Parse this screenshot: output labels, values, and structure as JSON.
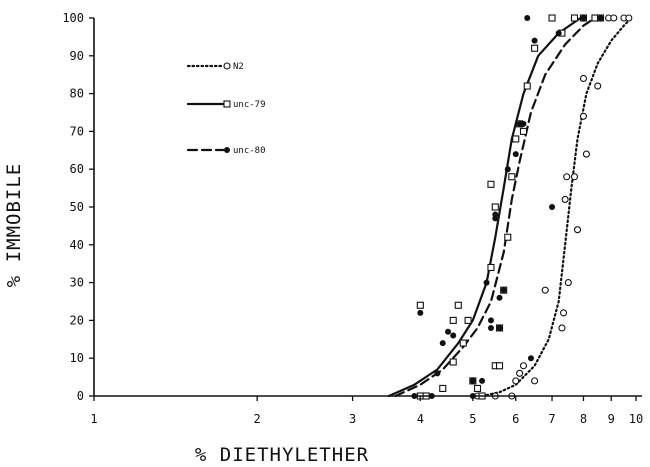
{
  "chart_data": {
    "type": "scatter",
    "xlabel": "% DIETHYLETHER",
    "ylabel": "% IMMOBILE",
    "x_scale": "log",
    "xlim": [
      1,
      10
    ],
    "ylim": [
      0,
      100
    ],
    "x_ticks": [
      "1",
      "2",
      "3",
      "4",
      "5",
      "6",
      "7",
      "8",
      "9",
      "10"
    ],
    "y_ticks": [
      "0",
      "10",
      "20",
      "30",
      "40",
      "50",
      "60",
      "70",
      "80",
      "90",
      "100"
    ],
    "grid": false,
    "legend": "upper-left",
    "series": [
      {
        "name": "N2",
        "marker": "open-circle",
        "line_style": "dotted",
        "points": [
          [
            5.1,
            0
          ],
          [
            5.5,
            0
          ],
          [
            5.9,
            0
          ],
          [
            6.0,
            4
          ],
          [
            6.1,
            6
          ],
          [
            6.2,
            8
          ],
          [
            6.5,
            4
          ],
          [
            6.8,
            28
          ],
          [
            7.3,
            18
          ],
          [
            7.35,
            22
          ],
          [
            7.4,
            52
          ],
          [
            7.45,
            58
          ],
          [
            7.5,
            30
          ],
          [
            7.7,
            58
          ],
          [
            7.8,
            44
          ],
          [
            8.0,
            74
          ],
          [
            8.0,
            84
          ],
          [
            8.1,
            64
          ],
          [
            8.5,
            82
          ],
          [
            8.6,
            100
          ],
          [
            8.9,
            100
          ],
          [
            9.1,
            100
          ],
          [
            9.5,
            100
          ],
          [
            9.7,
            100
          ]
        ],
        "curve": [
          [
            5.2,
            0
          ],
          [
            5.6,
            1
          ],
          [
            6.0,
            3
          ],
          [
            6.5,
            8
          ],
          [
            6.9,
            15
          ],
          [
            7.2,
            25
          ],
          [
            7.4,
            40
          ],
          [
            7.6,
            55
          ],
          [
            7.8,
            68
          ],
          [
            8.1,
            80
          ],
          [
            8.5,
            88
          ],
          [
            9.0,
            94
          ],
          [
            9.5,
            98
          ],
          [
            9.8,
            100
          ]
        ]
      },
      {
        "name": "unc-79",
        "marker": "open-square",
        "line_style": "solid",
        "points": [
          [
            4.0,
            24
          ],
          [
            4.0,
            0
          ],
          [
            4.1,
            0
          ],
          [
            4.4,
            2
          ],
          [
            4.6,
            9
          ],
          [
            4.6,
            20
          ],
          [
            4.7,
            24
          ],
          [
            4.8,
            14
          ],
          [
            4.9,
            20
          ],
          [
            5.0,
            4
          ],
          [
            5.1,
            2
          ],
          [
            5.2,
            0
          ],
          [
            5.4,
            56
          ],
          [
            5.4,
            34
          ],
          [
            5.5,
            8
          ],
          [
            5.5,
            50
          ],
          [
            5.6,
            8
          ],
          [
            5.6,
            18
          ],
          [
            5.7,
            28
          ],
          [
            5.8,
            42
          ],
          [
            5.9,
            58
          ],
          [
            6.0,
            68
          ],
          [
            6.1,
            72
          ],
          [
            6.2,
            70
          ],
          [
            6.3,
            82
          ],
          [
            6.5,
            92
          ],
          [
            7.0,
            100
          ],
          [
            7.3,
            96
          ],
          [
            7.7,
            100
          ],
          [
            8.0,
            100
          ],
          [
            8.4,
            100
          ],
          [
            8.6,
            100
          ]
        ],
        "curve": [
          [
            3.5,
            0
          ],
          [
            3.9,
            3
          ],
          [
            4.3,
            7
          ],
          [
            4.7,
            14
          ],
          [
            5.0,
            20
          ],
          [
            5.3,
            30
          ],
          [
            5.5,
            42
          ],
          [
            5.7,
            55
          ],
          [
            5.9,
            68
          ],
          [
            6.2,
            80
          ],
          [
            6.6,
            90
          ],
          [
            7.2,
            96
          ],
          [
            7.9,
            100
          ]
        ]
      },
      {
        "name": "unc-80",
        "marker": "filled-circle",
        "line_style": "dashed",
        "points": [
          [
            3.9,
            0
          ],
          [
            4.0,
            22
          ],
          [
            4.2,
            0
          ],
          [
            4.3,
            6
          ],
          [
            4.4,
            14
          ],
          [
            4.5,
            17
          ],
          [
            4.6,
            16
          ],
          [
            5.0,
            0
          ],
          [
            5.0,
            4
          ],
          [
            5.2,
            4
          ],
          [
            5.3,
            30
          ],
          [
            5.4,
            18
          ],
          [
            5.4,
            20
          ],
          [
            5.5,
            47
          ],
          [
            5.5,
            48
          ],
          [
            5.6,
            26
          ],
          [
            5.6,
            18
          ],
          [
            5.7,
            28
          ],
          [
            5.8,
            60
          ],
          [
            6.0,
            64
          ],
          [
            6.1,
            72
          ],
          [
            6.2,
            72
          ],
          [
            6.3,
            100
          ],
          [
            6.4,
            10
          ],
          [
            6.5,
            94
          ],
          [
            7.0,
            50
          ],
          [
            7.2,
            96
          ],
          [
            8.0,
            100
          ],
          [
            8.6,
            100
          ]
        ],
        "curve": [
          [
            3.6,
            0
          ],
          [
            4.0,
            3
          ],
          [
            4.4,
            7
          ],
          [
            4.8,
            13
          ],
          [
            5.1,
            18
          ],
          [
            5.4,
            25
          ],
          [
            5.7,
            38
          ],
          [
            5.9,
            52
          ],
          [
            6.1,
            62
          ],
          [
            6.4,
            75
          ],
          [
            6.8,
            85
          ],
          [
            7.4,
            93
          ],
          [
            8.0,
            98
          ],
          [
            8.4,
            100
          ]
        ]
      }
    ]
  }
}
